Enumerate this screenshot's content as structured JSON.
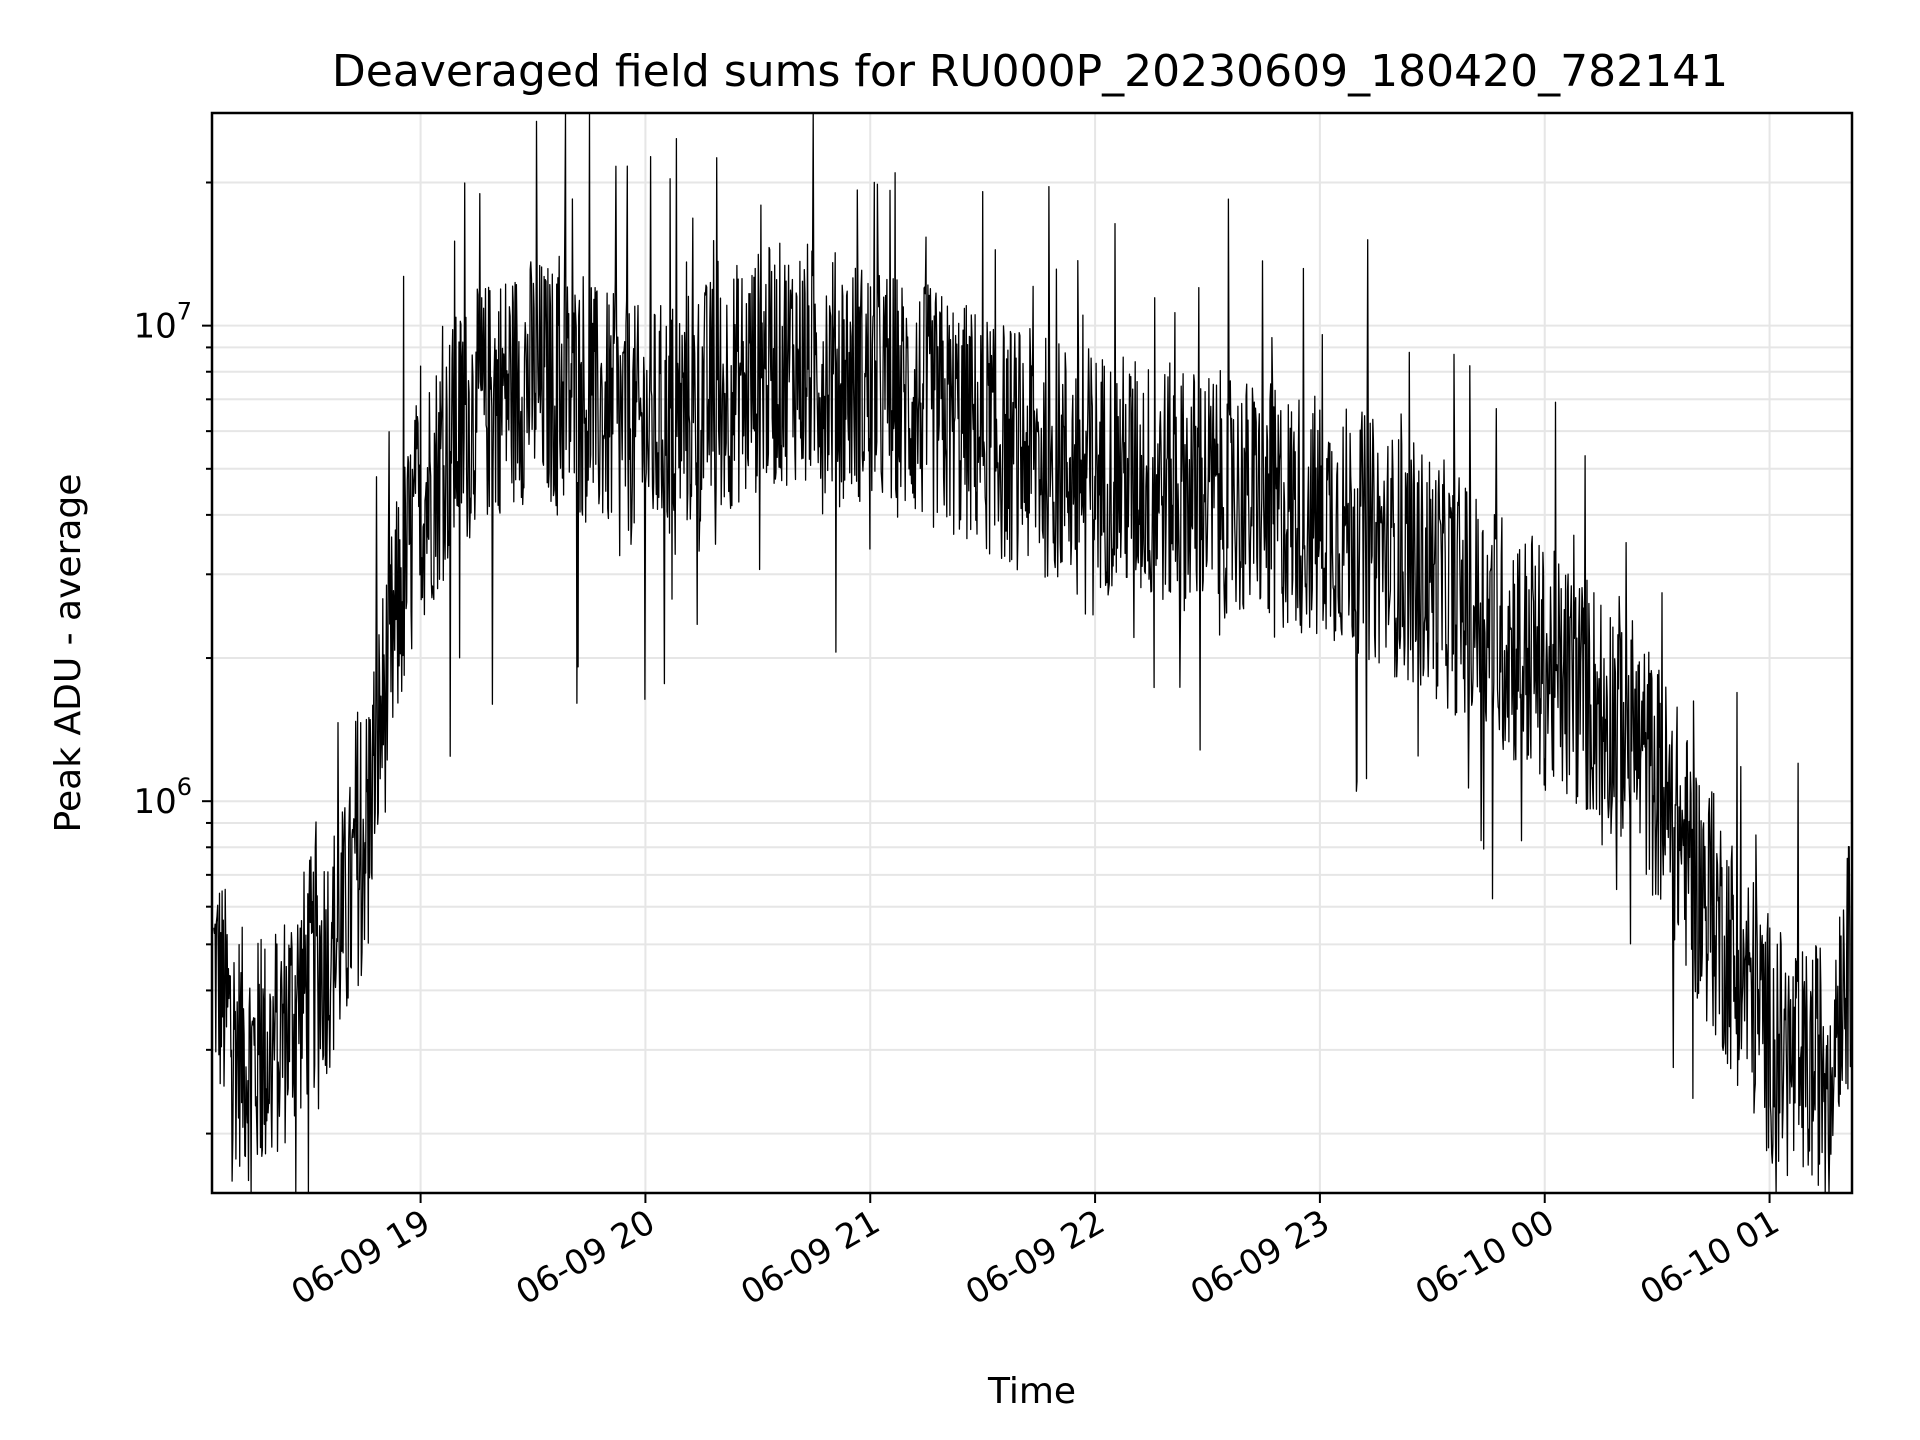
{
  "chart_data": {
    "type": "line",
    "title": "Deaveraged field sums for RU000P_20230609_180420_782141",
    "xlabel": "Time",
    "ylabel": "Peak ADU - average",
    "yscale": "log",
    "grid": true,
    "legend": "none",
    "xlim": [
      "2023-06-09 18:04:20",
      "2023-06-10 01:22:00"
    ],
    "ylim": [
      150000,
      28000000
    ],
    "x_ticks": [
      {
        "label": "06-09 19",
        "value": "2023-06-09 19:00"
      },
      {
        "label": "06-09 20",
        "value": "2023-06-09 20:00"
      },
      {
        "label": "06-09 21",
        "value": "2023-06-09 21:00"
      },
      {
        "label": "06-09 22",
        "value": "2023-06-09 22:00"
      },
      {
        "label": "06-09 23",
        "value": "2023-06-09 23:00"
      },
      {
        "label": "06-10 00",
        "value": "2023-06-10 00:00"
      },
      {
        "label": "06-10 01",
        "value": "2023-06-10 01:00"
      }
    ],
    "y_ticks": [
      {
        "base": "10",
        "exp": "6",
        "value": 1000000
      },
      {
        "base": "10",
        "exp": "7",
        "value": 10000000
      }
    ],
    "series": [
      {
        "color": "#000000",
        "x": [
          "2023-06-09 18:05",
          "2023-06-09 18:10",
          "2023-06-09 18:15",
          "2023-06-09 18:20",
          "2023-06-09 18:25",
          "2023-06-09 18:30",
          "2023-06-09 18:35",
          "2023-06-09 18:40",
          "2023-06-09 18:45",
          "2023-06-09 18:50",
          "2023-06-09 18:55",
          "2023-06-09 19:00",
          "2023-06-09 19:10",
          "2023-06-09 19:20",
          "2023-06-09 19:30",
          "2023-06-09 19:40",
          "2023-06-09 19:50",
          "2023-06-09 20:00",
          "2023-06-09 20:10",
          "2023-06-09 20:20",
          "2023-06-09 20:30",
          "2023-06-09 20:40",
          "2023-06-09 20:50",
          "2023-06-09 21:00",
          "2023-06-09 21:10",
          "2023-06-09 21:20",
          "2023-06-09 21:30",
          "2023-06-09 21:40",
          "2023-06-09 21:50",
          "2023-06-09 22:00",
          "2023-06-09 22:10",
          "2023-06-09 22:20",
          "2023-06-09 22:30",
          "2023-06-09 22:40",
          "2023-06-09 22:50",
          "2023-06-09 23:00",
          "2023-06-09 23:10",
          "2023-06-09 23:20",
          "2023-06-09 23:30",
          "2023-06-09 23:40",
          "2023-06-09 23:50",
          "2023-06-10 00:00",
          "2023-06-10 00:10",
          "2023-06-10 00:20",
          "2023-06-10 00:30",
          "2023-06-10 00:35",
          "2023-06-10 00:40",
          "2023-06-10 00:45",
          "2023-06-10 00:50",
          "2023-06-10 00:55",
          "2023-06-10 01:00",
          "2023-06-10 01:05",
          "2023-06-10 01:10",
          "2023-06-10 01:15",
          "2023-06-10 01:20"
        ],
        "y": [
          450000,
          320000,
          280000,
          300000,
          350000,
          420000,
          480000,
          560000,
          850000,
          1600000,
          2800000,
          4200000,
          6000000,
          7200000,
          7800000,
          7200000,
          6500000,
          6000000,
          6500000,
          7200000,
          8000000,
          8500000,
          8000000,
          7500000,
          7000000,
          6500000,
          6000000,
          5500000,
          5200000,
          5000000,
          4800000,
          4600000,
          4500000,
          4300000,
          4100000,
          4000000,
          3700000,
          3300000,
          3000000,
          2600000,
          2200000,
          1900000,
          1700000,
          1500000,
          1100000,
          900000,
          700000,
          580000,
          480000,
          400000,
          320000,
          280000,
          270000,
          290000,
          450000
        ]
      }
    ]
  }
}
